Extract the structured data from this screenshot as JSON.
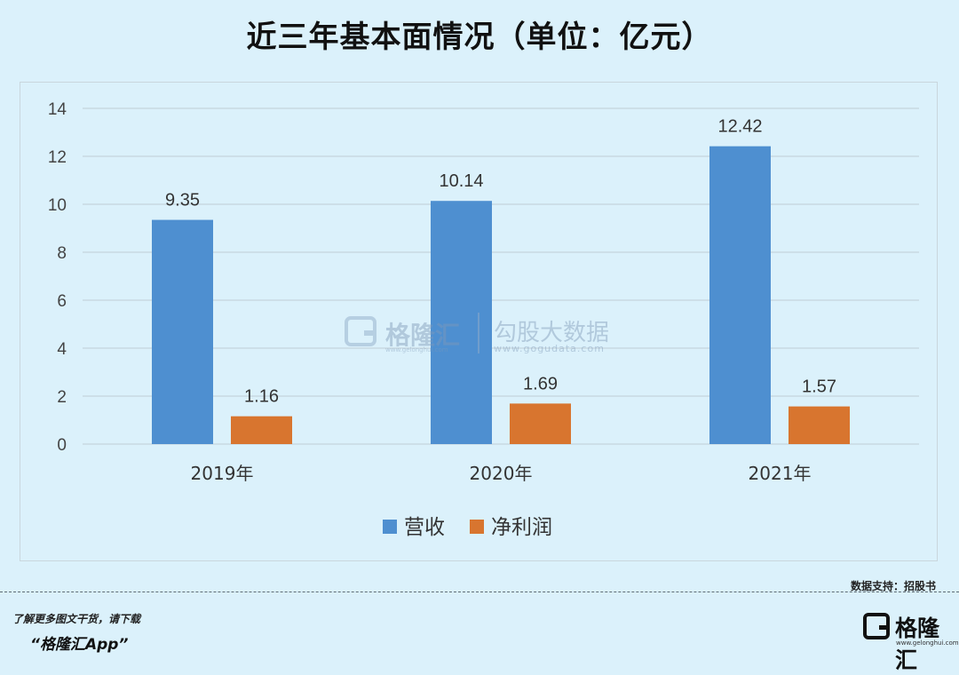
{
  "title": "近三年基本面情况（单位：亿元）",
  "chart_data": {
    "type": "bar",
    "categories": [
      "2019年",
      "2020年",
      "2021年"
    ],
    "series": [
      {
        "name": "营收",
        "values": [
          9.35,
          10.14,
          12.42
        ],
        "color": "#4e8fd0"
      },
      {
        "name": "净利润",
        "values": [
          1.16,
          1.69,
          1.57
        ],
        "color": "#d8752f"
      }
    ],
    "data_labels": [
      [
        "9.35",
        "10.14",
        "12.42"
      ],
      [
        "1.16",
        "1.69",
        "1.57"
      ]
    ],
    "yticks": [
      "0",
      "2",
      "4",
      "6",
      "8",
      "10",
      "12",
      "14"
    ],
    "ylim": [
      0,
      14
    ],
    "grid": true,
    "legend_position": "bottom"
  },
  "watermark": {
    "brand": "格隆汇",
    "brand_site": "www.gelonghui.com",
    "partner": "勾股大数据",
    "partner_site": "www.gogudata.com"
  },
  "footer": {
    "source": "数据支持：招股书",
    "promo_line1": "了解更多图文干货，请下载",
    "promo_line2": "“格隆汇App”",
    "brand_name": "格隆汇",
    "brand_site": "www.gelonghui.com"
  }
}
